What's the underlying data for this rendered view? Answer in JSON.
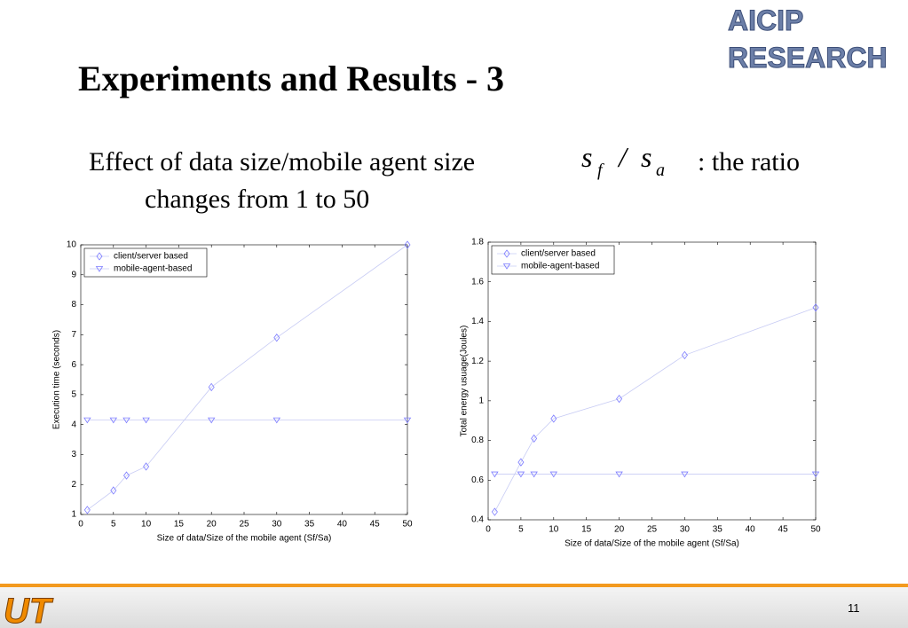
{
  "slide": {
    "title": "Experiments and Results - 3",
    "subtitle": {
      "before": "Effect of data size/mobile agent size",
      "formula": [
        "s",
        "f",
        "/",
        "s",
        "a"
      ],
      "after": ": the ratio",
      "line2": "changes from 1 to 50"
    },
    "logo": [
      "AICIP",
      "RESEARCH"
    ],
    "footer_logo": "UT",
    "page_number": "11"
  },
  "chart_data": [
    {
      "type": "line",
      "xlabel": "Size of data/Size of the mobile agent (Sf/Sa)",
      "ylabel": "Execution time (seconds)",
      "x": [
        1,
        5,
        7,
        10,
        20,
        30,
        50
      ],
      "series": [
        {
          "name": "client/server based",
          "color": "#7b7bff",
          "marker": "diamond",
          "values": [
            1.15,
            1.8,
            2.3,
            2.6,
            5.25,
            6.9,
            10
          ]
        },
        {
          "name": "mobile-agent-based",
          "color": "#7b7bff",
          "marker": "triangle",
          "values": [
            4.15,
            4.15,
            4.15,
            4.15,
            4.15,
            4.15,
            4.15
          ]
        }
      ],
      "xlim": [
        0,
        50
      ],
      "xticks": [
        0,
        5,
        10,
        15,
        20,
        25,
        30,
        35,
        40,
        45,
        50
      ],
      "ylim": [
        1,
        10
      ],
      "yticks": [
        1,
        2,
        3,
        4,
        5,
        6,
        7,
        8,
        9,
        10
      ],
      "legend": "upper left"
    },
    {
      "type": "line",
      "xlabel": "Size of data/Size of the mobile agent (Sf/Sa)",
      "ylabel": "Total energy usuage(Joules)",
      "x": [
        1,
        5,
        7,
        10,
        20,
        30,
        50
      ],
      "series": [
        {
          "name": "client/server based",
          "color": "#7b7bff",
          "marker": "diamond",
          "values": [
            0.44,
            0.69,
            0.81,
            0.91,
            1.01,
            1.23,
            1.47
          ]
        },
        {
          "name": "mobile-agent-based",
          "color": "#7b7bff",
          "marker": "triangle",
          "values": [
            0.63,
            0.63,
            0.63,
            0.63,
            0.63,
            0.63,
            0.63
          ]
        }
      ],
      "xlim": [
        0,
        50
      ],
      "xticks": [
        0,
        5,
        10,
        15,
        20,
        25,
        30,
        35,
        40,
        45,
        50
      ],
      "ylim": [
        0.4,
        1.8
      ],
      "yticks": [
        0.4,
        0.6,
        0.8,
        1,
        1.2,
        1.4,
        1.6,
        1.8
      ],
      "legend": "upper left"
    }
  ]
}
